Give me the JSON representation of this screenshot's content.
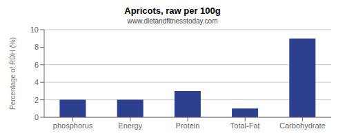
{
  "chart_data": {
    "type": "bar",
    "title": "Apricots, raw per 100g",
    "subtitle": "www.dietandfitnesstoday.com",
    "categories": [
      "phosphorus",
      "Energy",
      "Protein",
      "Total-Fat",
      "Carbohydrate"
    ],
    "values": [
      2.0,
      2.0,
      3.0,
      1.0,
      9.0
    ],
    "color": "#2e3f8f",
    "ylabel": "Percentage of RDH (%)",
    "ylim": [
      0,
      10
    ],
    "yticks": [
      0,
      2,
      4,
      6,
      8,
      10
    ],
    "grid": true
  }
}
